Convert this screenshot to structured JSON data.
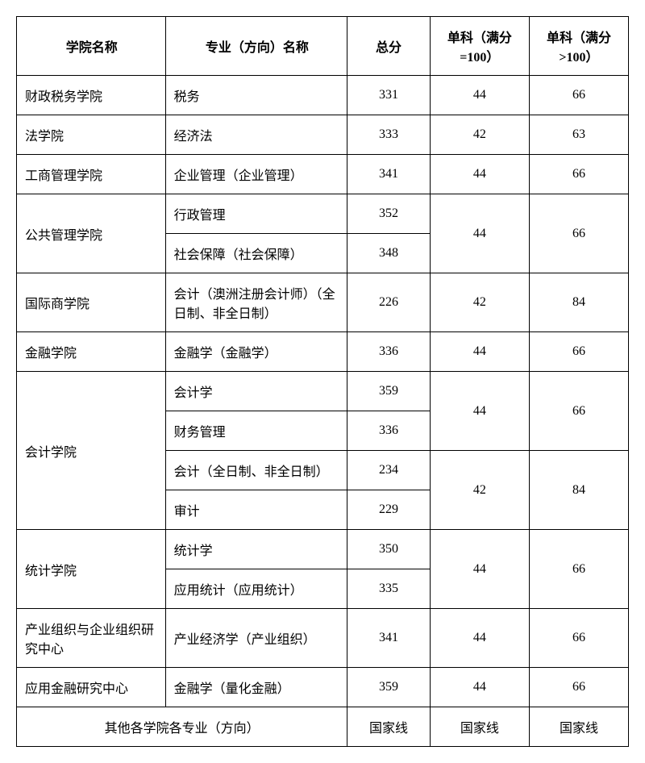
{
  "table": {
    "headers": {
      "school": "学院名称",
      "major": "专业（方向）名称",
      "total": "总分",
      "sub1": "单科（满分=100）",
      "sub2": "单科（满分>100）"
    },
    "r0": {
      "school": "财政税务学院",
      "major": "税务",
      "total": "331",
      "sub1": "44",
      "sub2": "66"
    },
    "r1": {
      "school": "法学院",
      "major": "经济法",
      "total": "333",
      "sub1": "42",
      "sub2": "63"
    },
    "r2": {
      "school": "工商管理学院",
      "major": "企业管理（企业管理）",
      "total": "341",
      "sub1": "44",
      "sub2": "66"
    },
    "r3": {
      "school": "公共管理学院",
      "major": "行政管理",
      "total": "352",
      "sub1": "44",
      "sub2": "66"
    },
    "r4": {
      "major": "社会保障（社会保障）",
      "total": "348"
    },
    "r5": {
      "school": "国际商学院",
      "major": "会计（澳洲注册会计师）（全日制、非全日制）",
      "total": "226",
      "sub1": "42",
      "sub2": "84"
    },
    "r6": {
      "school": "金融学院",
      "major": "金融学（金融学）",
      "total": "336",
      "sub1": "44",
      "sub2": "66"
    },
    "r7": {
      "school": "会计学院",
      "major": "会计学",
      "total": "359",
      "sub1": "44",
      "sub2": "66"
    },
    "r8": {
      "major": "财务管理",
      "total": "336"
    },
    "r9": {
      "major": "会计（全日制、非全日制）",
      "total": "234",
      "sub1": "42",
      "sub2": "84"
    },
    "r10": {
      "major": "审计",
      "total": "229"
    },
    "r11": {
      "school": "统计学院",
      "major": "统计学",
      "total": "350",
      "sub1": "44",
      "sub2": "66"
    },
    "r12": {
      "major": "应用统计（应用统计）",
      "total": "335"
    },
    "r13": {
      "school": "产业组织与企业组织研究中心",
      "major": "产业经济学（产业组织）",
      "total": "341",
      "sub1": "44",
      "sub2": "66"
    },
    "r14": {
      "school": "应用金融研究中心",
      "major": "金融学（量化金融）",
      "total": "359",
      "sub1": "44",
      "sub2": "66"
    },
    "footer": {
      "label": "其他各学院各专业（方向）",
      "total": "国家线",
      "sub1": "国家线",
      "sub2": "国家线"
    }
  }
}
